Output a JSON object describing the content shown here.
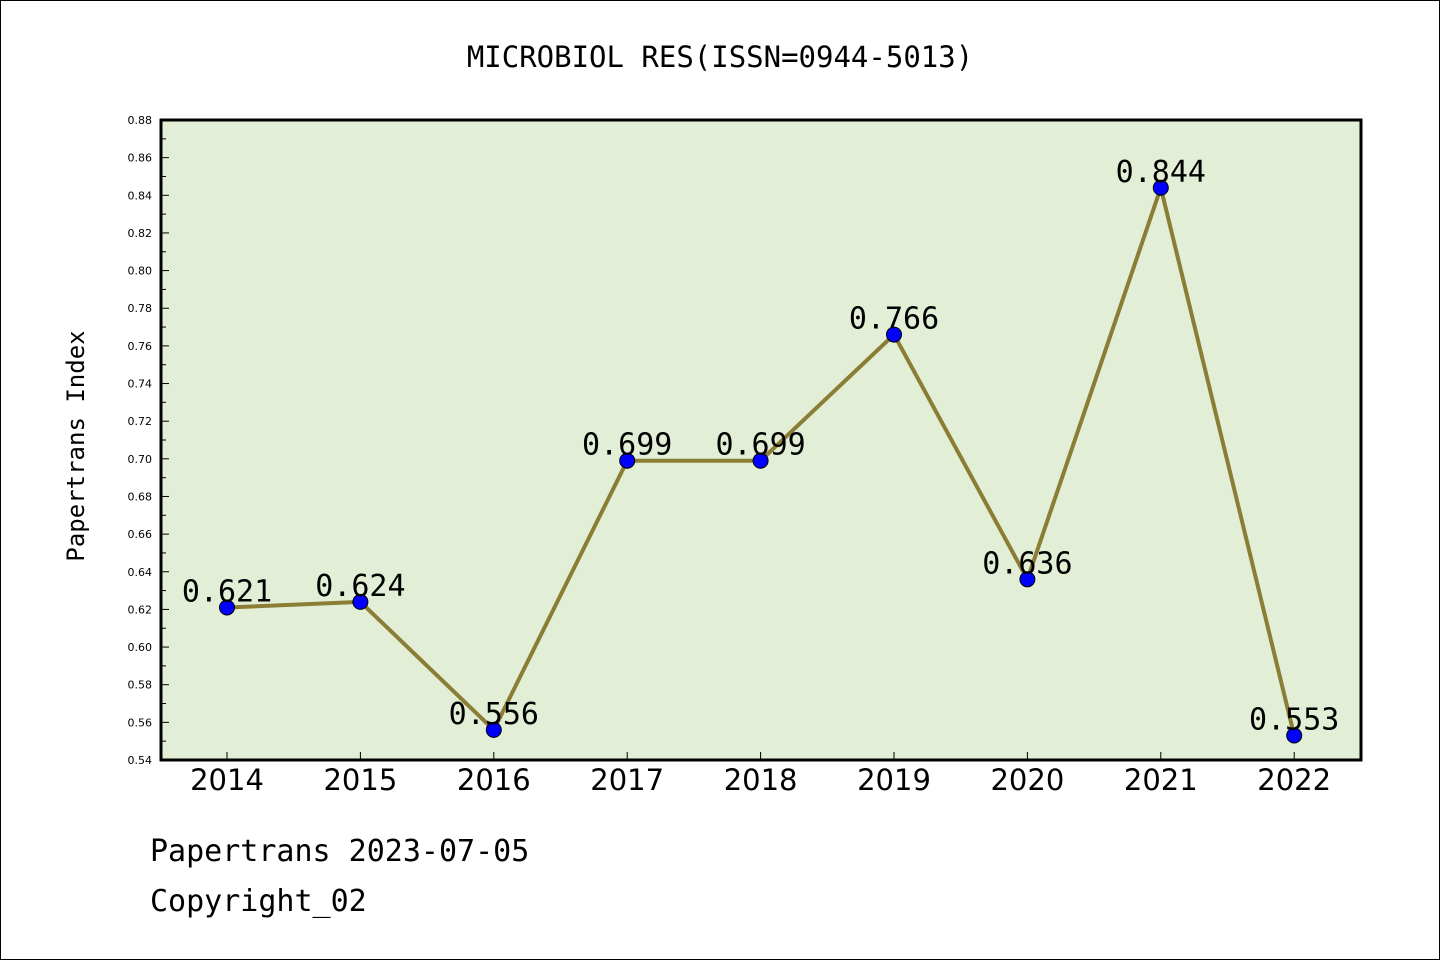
{
  "chart_data": {
    "type": "line",
    "title": "MICROBIOL RES(ISSN=0944-5013)",
    "xlabel": "",
    "ylabel": "Papertrans Index",
    "categories": [
      "2014",
      "2015",
      "2016",
      "2017",
      "2018",
      "2019",
      "2020",
      "2021",
      "2022"
    ],
    "values": [
      0.621,
      0.624,
      0.556,
      0.699,
      0.699,
      0.766,
      0.636,
      0.844,
      0.553
    ],
    "data_labels": [
      "0.621",
      "0.624",
      "0.556",
      "0.699",
      "0.699",
      "0.766",
      "0.636",
      "0.844",
      "0.553"
    ],
    "ylim": [
      0.54,
      0.88
    ],
    "yticks": [
      "0.54",
      "0.56",
      "0.58",
      "0.60",
      "0.62",
      "0.64",
      "0.66",
      "0.68",
      "0.70",
      "0.72",
      "0.74",
      "0.76",
      "0.78",
      "0.80",
      "0.82",
      "0.84",
      "0.86",
      "0.88"
    ],
    "grid": false,
    "colors": {
      "plot_bg": "#e2efd6",
      "line": "#8b7d35",
      "marker": "#0000ff"
    }
  },
  "footer": {
    "line1": "Papertrans 2023-07-05",
    "line2": "Copyright_02"
  }
}
